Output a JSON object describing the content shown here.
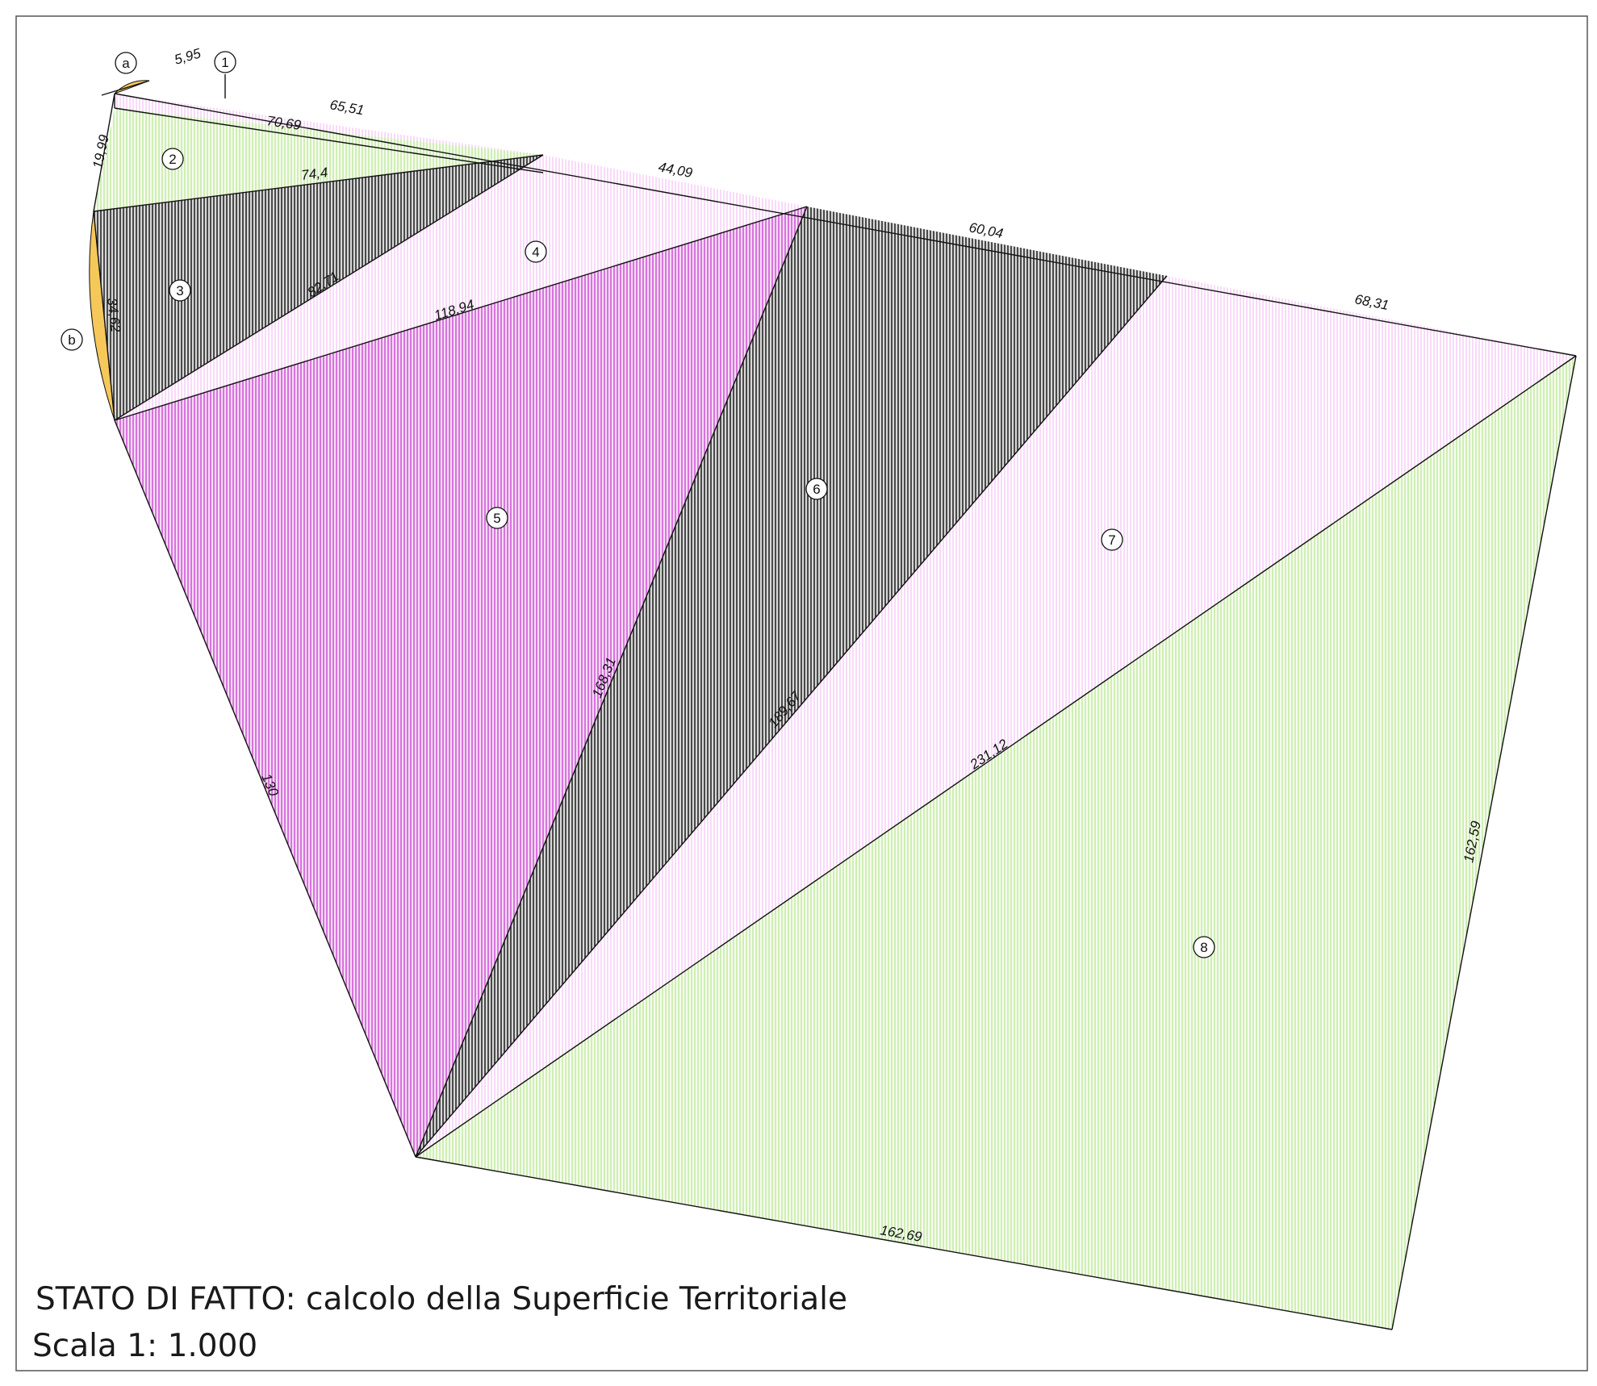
{
  "title": "STATO DI FATTO: calcolo della Superficie Territoriale",
  "scale": "Scala 1: 1.000",
  "colors": {
    "magenta_hatch": "#c93ad0",
    "light_pink_hatch": "#f3b6f3",
    "green_hatch": "#a8df7a",
    "black_hatch": "#1a1a1a",
    "arc_yellow": "#f6c85a",
    "frame": "#555555"
  },
  "area_labels": [
    "1",
    "2",
    "3",
    "4",
    "5",
    "6",
    "7",
    "8"
  ],
  "segment_labels": [
    "a",
    "b"
  ],
  "dimensions": {
    "d_5_95": "5,95",
    "d_65_51": "65,51",
    "d_70_69": "70,69",
    "d_19_99": "19,99",
    "d_74_4": "74,4",
    "d_44_09": "44,09",
    "d_60_04": "60,04",
    "d_68_31": "68,31",
    "d_82_71": "82,71",
    "d_34_62": "34,62",
    "d_118_94": "118,94",
    "d_168_31": "168,31",
    "d_189_67": "189,67",
    "d_231_12": "231,12",
    "d_130": "130",
    "d_162_59": "162,59",
    "d_162_69": "162,69"
  }
}
